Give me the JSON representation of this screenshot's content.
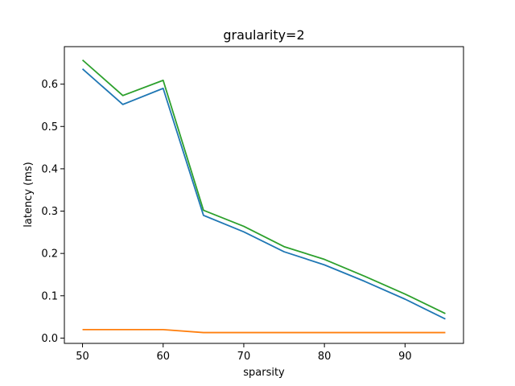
{
  "chart_data": {
    "type": "line",
    "title": "graularity=2",
    "xlabel": "sparsity",
    "ylabel": "latency (ms)",
    "x": [
      50,
      55,
      60,
      65,
      70,
      75,
      80,
      85,
      90,
      95
    ],
    "xlim": [
      47.75,
      97.25
    ],
    "ylim": [
      -0.0125,
      0.6886
    ],
    "xticks": [
      50,
      60,
      70,
      80,
      90
    ],
    "yticks": [
      0.0,
      0.1,
      0.2,
      0.3,
      0.4,
      0.5,
      0.6
    ],
    "ytick_labels": [
      "0.0",
      "0.1",
      "0.2",
      "0.3",
      "0.4",
      "0.5",
      "0.6"
    ],
    "grid": false,
    "series": [
      {
        "color": "#1f77b4",
        "values": [
          0.636,
          0.552,
          0.59,
          0.29,
          0.251,
          0.204,
          0.173,
          0.134,
          0.092,
          0.045
        ]
      },
      {
        "color": "#ff7f0e",
        "values": [
          0.02,
          0.02,
          0.02,
          0.013,
          0.013,
          0.013,
          0.013,
          0.013,
          0.013,
          0.013
        ]
      },
      {
        "color": "#2ca02c",
        "values": [
          0.657,
          0.573,
          0.609,
          0.302,
          0.264,
          0.216,
          0.186,
          0.146,
          0.104,
          0.058
        ]
      }
    ]
  }
}
